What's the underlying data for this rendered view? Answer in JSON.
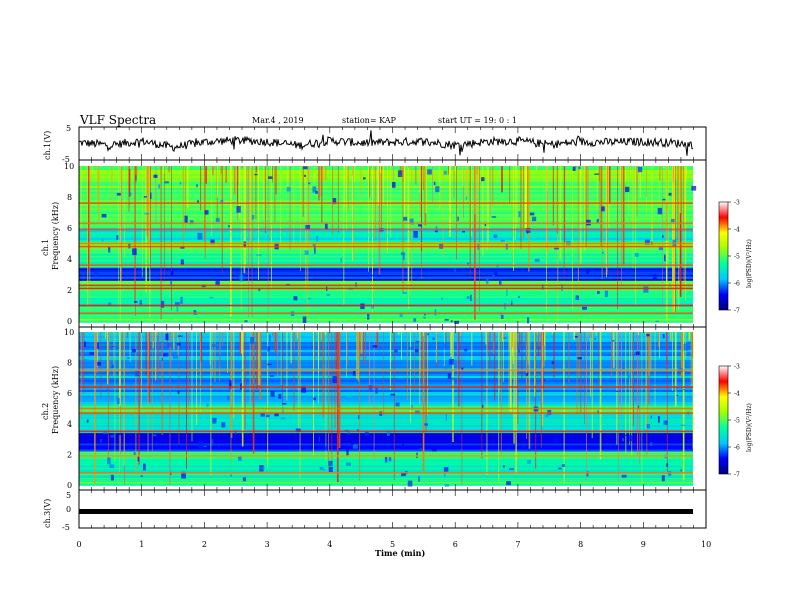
{
  "header": {
    "title": "VLF Spectra",
    "date": "Mar.4 , 2019",
    "station": "station= KAP",
    "start": "start  UT =   19: 0  : 1"
  },
  "panels": {
    "ch1_label": "ch.1(V)",
    "spec1_label_a": "ch.1",
    "spec1_label_b": "Frequency  (kHz)",
    "spec2_label_a": "ch.2",
    "spec2_label_b": "Frequency  (kHz)",
    "ch3_label": "ch.3(V)",
    "xlabel": "Time  (min)",
    "colorbar_label": "log(PSD)(V²/Hz)"
  },
  "chart_data": [
    {
      "type": "line",
      "name": "ch1-waveform",
      "ylabel": "ch.1(V)",
      "ylim": [
        -5,
        5
      ],
      "yticks": [
        "5",
        "-5"
      ],
      "xlim": [
        0,
        10
      ],
      "x": [
        0,
        0.5,
        1,
        1.5,
        2,
        2.5,
        3,
        3.5,
        4,
        4.5,
        5,
        5.5,
        6,
        6.5,
        7,
        7.5,
        8,
        8.5,
        9,
        9.5,
        9.8
      ],
      "y": [
        0.3,
        -0.5,
        0.8,
        -1.2,
        0.5,
        1.0,
        0.6,
        -0.6,
        0.9,
        0.2,
        0.4,
        0.7,
        -0.5,
        0.6,
        0.8,
        -0.3,
        0.5,
        0.4,
        0.6,
        0.2,
        -0.4
      ]
    },
    {
      "type": "heatmap",
      "name": "ch1-spectrogram",
      "ylabel": "Frequency  (kHz)",
      "ylim": [
        0,
        10
      ],
      "yticks": [
        "0",
        "2",
        "4",
        "6",
        "8",
        "10"
      ],
      "xlim": [
        0,
        10
      ],
      "bands_kHz": [
        {
          "from": 0.0,
          "to": 0.4,
          "level": -5.0
        },
        {
          "from": 0.4,
          "to": 1.3,
          "level": -5.3
        },
        {
          "from": 1.3,
          "to": 2.0,
          "level": -5.2
        },
        {
          "from": 2.0,
          "to": 2.6,
          "level": -4.9
        },
        {
          "from": 2.6,
          "to": 3.5,
          "level": -6.3
        },
        {
          "from": 3.5,
          "to": 4.6,
          "level": -5.3
        },
        {
          "from": 4.6,
          "to": 5.2,
          "level": -5.0
        },
        {
          "from": 5.2,
          "to": 6.0,
          "level": -5.6
        },
        {
          "from": 6.0,
          "to": 10.0,
          "level": -5.0
        }
      ],
      "lines_kHz": [
        0.5,
        1.0,
        2.1,
        2.3,
        3.6,
        4.8,
        5.0,
        5.9,
        6.3,
        7.6
      ]
    },
    {
      "type": "heatmap",
      "name": "ch2-spectrogram",
      "ylabel": "Frequency  (kHz)",
      "ylim": [
        0,
        10
      ],
      "yticks": [
        "0",
        "2",
        "4",
        "6",
        "8",
        "10"
      ],
      "xlim": [
        0,
        10
      ],
      "bands_kHz": [
        {
          "from": 0.0,
          "to": 0.6,
          "level": -5.1
        },
        {
          "from": 0.6,
          "to": 1.8,
          "level": -5.4
        },
        {
          "from": 1.8,
          "to": 2.3,
          "level": -5.0
        },
        {
          "from": 2.3,
          "to": 3.5,
          "level": -6.4
        },
        {
          "from": 3.5,
          "to": 4.7,
          "level": -5.5
        },
        {
          "from": 4.7,
          "to": 5.3,
          "level": -5.1
        },
        {
          "from": 5.3,
          "to": 6.1,
          "level": -5.8
        },
        {
          "from": 6.1,
          "to": 10.0,
          "level": -5.9
        }
      ],
      "lines_kHz": [
        0.8,
        1.9,
        3.5,
        4.7,
        5.0,
        6.4,
        7.5
      ]
    },
    {
      "type": "line",
      "name": "ch3-waveform",
      "ylabel": "ch.3(V)",
      "ylim": [
        -5,
        5
      ],
      "yticks": [
        "5",
        "0",
        "-5"
      ],
      "xlim": [
        0,
        10
      ],
      "x": [
        0,
        9.8
      ],
      "y": [
        -1.5,
        -1.5
      ]
    },
    {
      "type": "colorbar",
      "name": "psd-colorbar",
      "ylabel": "log(PSD)(V²/Hz)",
      "range": [
        -7,
        -3
      ],
      "ticks": [
        "-3",
        "-4",
        "-5",
        "-6",
        "-7"
      ],
      "colors": [
        "#000080",
        "#0000ff",
        "#00c8ff",
        "#00ffa0",
        "#a0ff00",
        "#ffff00",
        "#ff0000",
        "#ffffff"
      ]
    }
  ],
  "xaxis": {
    "label": "Time  (min)",
    "ticks": [
      "0",
      "1",
      "2",
      "3",
      "4",
      "5",
      "6",
      "7",
      "8",
      "9",
      "10"
    ]
  }
}
